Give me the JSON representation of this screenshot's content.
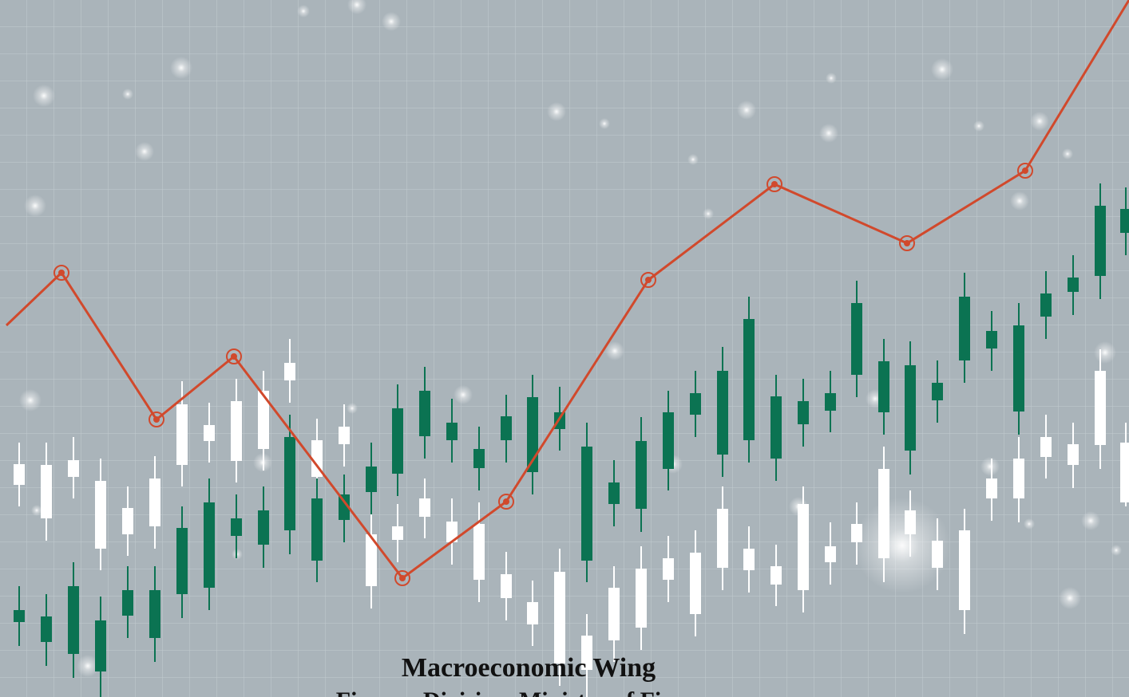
{
  "cover": {
    "title": "Macroeconomic Wing",
    "subtitle": "Finance Division, Ministry of Finance"
  }
}
